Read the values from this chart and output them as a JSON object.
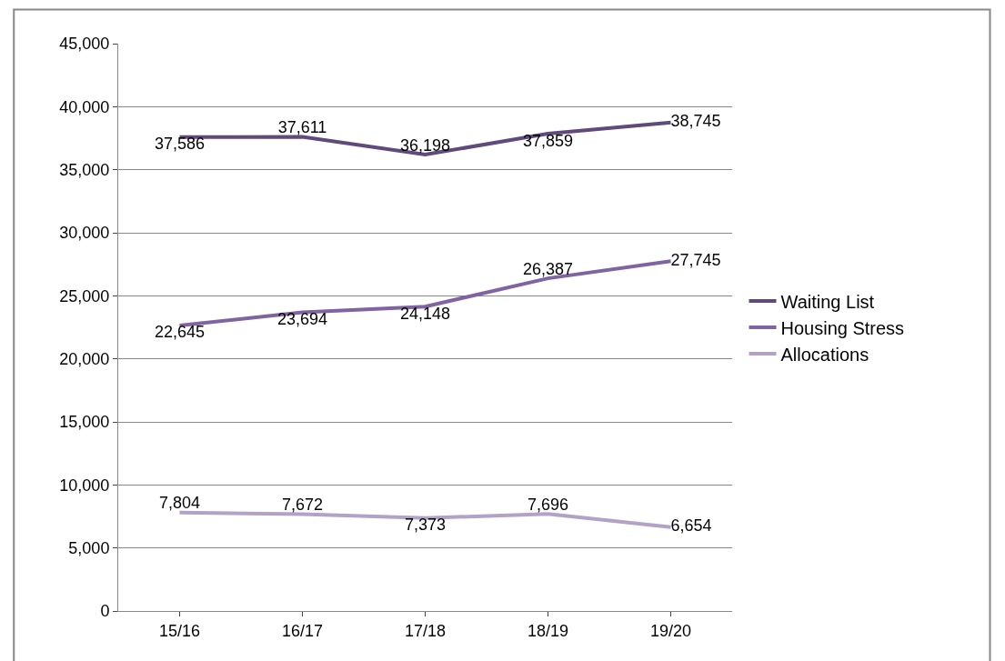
{
  "chart_data": {
    "type": "line",
    "categories": [
      "15/16",
      "16/17",
      "17/18",
      "18/19",
      "19/20"
    ],
    "series": [
      {
        "name": "Waiting List",
        "color": "#604a7b",
        "values": [
          37586,
          37611,
          36198,
          37859,
          38745
        ],
        "value_labels": [
          "37,586",
          "37,611",
          "36,198",
          "37,859",
          "38,745"
        ]
      },
      {
        "name": "Housing Stress",
        "color": "#8064a2",
        "values": [
          22645,
          23694,
          24148,
          26387,
          27745
        ],
        "value_labels": [
          "22,645",
          "23,694",
          "24,148",
          "26,387",
          "27,745"
        ]
      },
      {
        "name": "Allocations",
        "color": "#b3a2c7",
        "values": [
          7804,
          7672,
          7373,
          7696,
          6654
        ],
        "value_labels": [
          "7,804",
          "7,672",
          "7,373",
          "7,696",
          "6,654"
        ]
      }
    ],
    "ylim": [
      0,
      45000
    ],
    "yticks": [
      {
        "value": 0,
        "label": "0"
      },
      {
        "value": 5000,
        "label": "5,000"
      },
      {
        "value": 10000,
        "label": "10,000"
      },
      {
        "value": 15000,
        "label": "15,000"
      },
      {
        "value": 20000,
        "label": "20,000"
      },
      {
        "value": 25000,
        "label": "25,000"
      },
      {
        "value": 30000,
        "label": "30,000"
      },
      {
        "value": 35000,
        "label": "35,000"
      },
      {
        "value": 40000,
        "label": "40,000"
      },
      {
        "value": 45000,
        "label": "45,000"
      }
    ],
    "grid": "y",
    "legend": "right",
    "marker": "none",
    "line_style": "solid"
  }
}
